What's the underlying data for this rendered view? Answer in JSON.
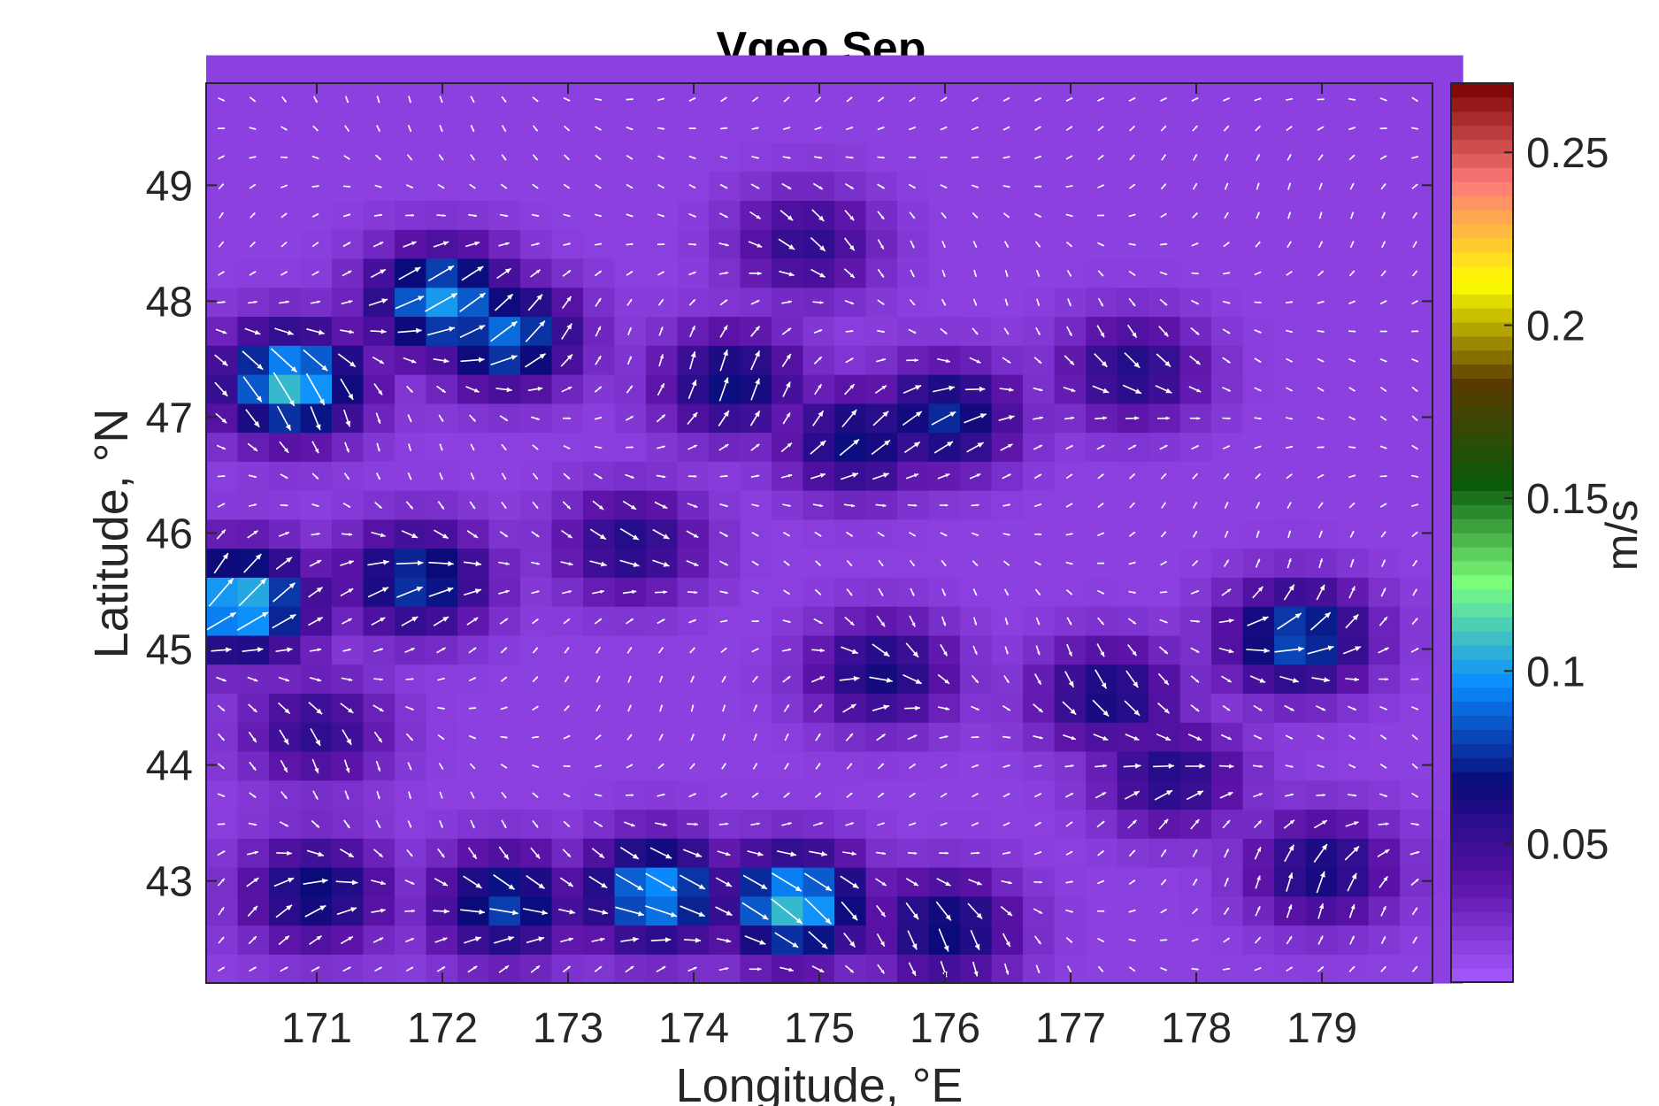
{
  "chart_data": {
    "type": "heatmap",
    "title": "Vgeo Sep",
    "xlabel": "Longitude, °E",
    "ylabel": "Latitude, °N",
    "xlim": [
      170.12,
      179.88
    ],
    "ylim": [
      42.12,
      49.88
    ],
    "xticks": [
      171,
      172,
      173,
      174,
      175,
      176,
      177,
      178,
      179
    ],
    "yticks": [
      43,
      44,
      45,
      46,
      47,
      48,
      49
    ],
    "colorbar": {
      "label": "m/s",
      "range": [
        0.01,
        0.27
      ],
      "ticks": [
        0.05,
        0.1,
        0.15,
        0.2,
        0.25
      ],
      "tick_labels": [
        "0.05",
        "0.1",
        "0.15",
        "0.2",
        "0.25"
      ],
      "colors": [
        "#a659ff",
        "#5a12a6",
        "#0a0a7a",
        "#0a8cff",
        "#7dff7d",
        "#0a5a0a",
        "#5a3a00",
        "#ffff00",
        "#ff7a7a",
        "#7a0000"
      ]
    },
    "overlay": "velocity vectors (white arrows)",
    "grid": false,
    "field_cell_size_deg": 0.25,
    "speed_features": [
      {
        "lon": 170.8,
        "lat": 47.3,
        "speed": 0.11
      },
      {
        "lon": 172.0,
        "lat": 48.0,
        "speed": 0.1
      },
      {
        "lon": 172.5,
        "lat": 47.7,
        "speed": 0.09
      },
      {
        "lon": 170.4,
        "lat": 45.4,
        "speed": 0.11
      },
      {
        "lon": 171.8,
        "lat": 45.6,
        "speed": 0.08
      },
      {
        "lon": 173.5,
        "lat": 45.9,
        "speed": 0.06
      },
      {
        "lon": 173.7,
        "lat": 42.9,
        "speed": 0.1
      },
      {
        "lon": 174.8,
        "lat": 42.8,
        "speed": 0.11
      },
      {
        "lon": 172.5,
        "lat": 42.8,
        "speed": 0.08
      },
      {
        "lon": 171.0,
        "lat": 42.9,
        "speed": 0.07
      },
      {
        "lon": 176.0,
        "lat": 42.6,
        "speed": 0.07
      },
      {
        "lon": 174.3,
        "lat": 47.3,
        "speed": 0.07
      },
      {
        "lon": 175.3,
        "lat": 46.8,
        "speed": 0.07
      },
      {
        "lon": 176.0,
        "lat": 47.0,
        "speed": 0.075
      },
      {
        "lon": 177.5,
        "lat": 47.4,
        "speed": 0.06
      },
      {
        "lon": 178.8,
        "lat": 45.1,
        "speed": 0.085
      },
      {
        "lon": 177.3,
        "lat": 44.6,
        "speed": 0.065
      },
      {
        "lon": 175.5,
        "lat": 44.8,
        "speed": 0.065
      },
      {
        "lon": 177.8,
        "lat": 43.9,
        "speed": 0.06
      },
      {
        "lon": 179.0,
        "lat": 43.1,
        "speed": 0.065
      },
      {
        "lon": 174.9,
        "lat": 48.5,
        "speed": 0.055
      },
      {
        "lon": 171.0,
        "lat": 44.3,
        "speed": 0.055
      }
    ]
  }
}
